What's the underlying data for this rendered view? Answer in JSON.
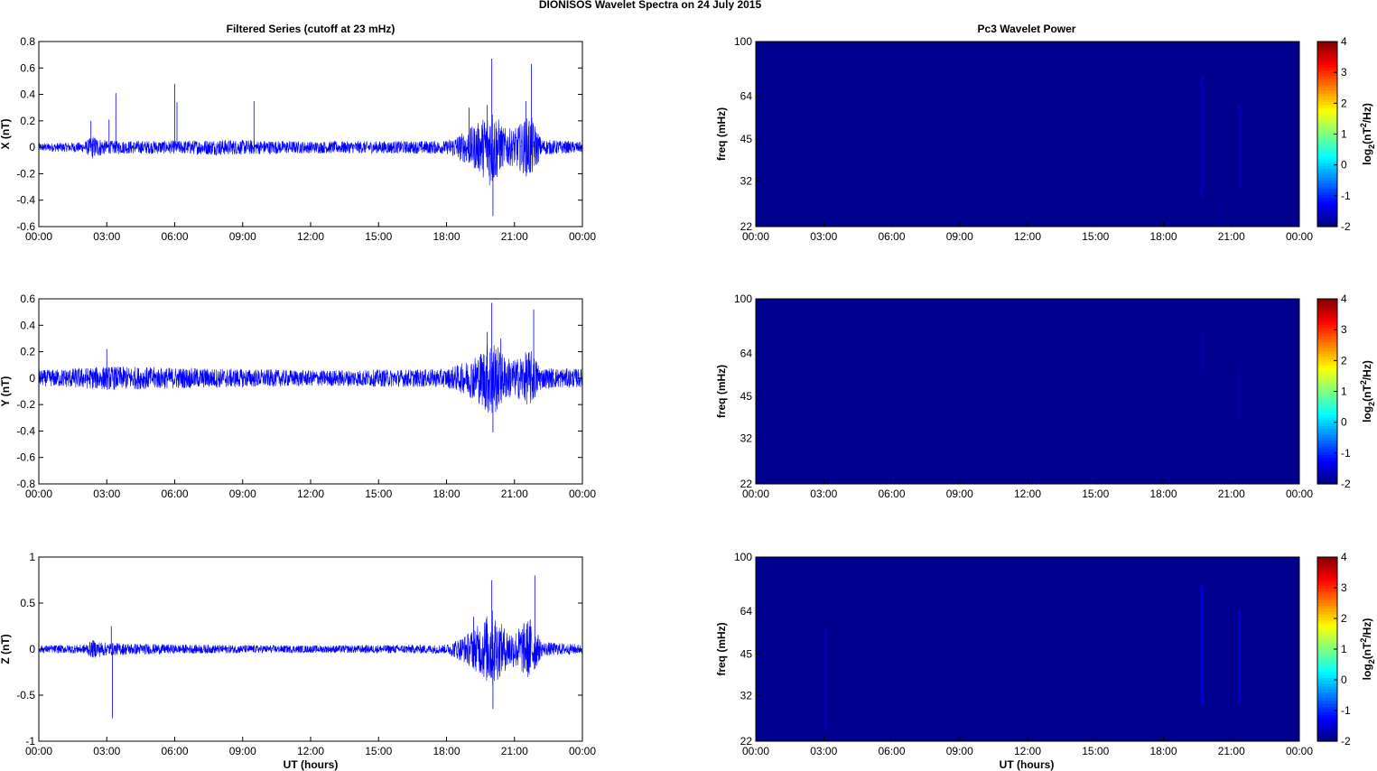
{
  "figure": {
    "title": "DIONISOS Wavelet Spectra on 24 July      2015",
    "left_title": "Filtered Series (cutoff at 23 mHz)",
    "right_title": "Pc3 Wavelet Power",
    "xlabel": "UT (hours)"
  },
  "x_ticks": [
    "00:00",
    "03:00",
    "06:00",
    "09:00",
    "12:00",
    "15:00",
    "18:00",
    "21:00",
    "00:00"
  ],
  "colors": {
    "series": "#0000ff",
    "spectrogram_bg": "#00008f",
    "axis": "#000000"
  },
  "chart_data": [
    {
      "type": "line",
      "panel": "X",
      "ylabel": "X (nT)",
      "xlim_hours": [
        0,
        24
      ],
      "ylim": [
        -0.6,
        0.8
      ],
      "yticks": [
        -0.6,
        -0.4,
        -0.2,
        0,
        0.2,
        0.4,
        0.6,
        0.8
      ],
      "ytick_labels": [
        "-0.6",
        "-0.4",
        "-0.2",
        "0",
        "0.2",
        "0.4",
        "0.6",
        "0.8"
      ],
      "series": [
        {
          "noise_envelope": [
            [
              0,
              0.03
            ],
            [
              2,
              0.04
            ],
            [
              2.4,
              0.09
            ],
            [
              3,
              0.05
            ],
            [
              6,
              0.05
            ],
            [
              8,
              0.06
            ],
            [
              12,
              0.045
            ],
            [
              18,
              0.05
            ],
            [
              18.8,
              0.12
            ],
            [
              19.5,
              0.2
            ],
            [
              20,
              0.32
            ],
            [
              20.5,
              0.15
            ],
            [
              21,
              0.14
            ],
            [
              21.7,
              0.25
            ],
            [
              22.2,
              0.06
            ],
            [
              24,
              0.04
            ]
          ],
          "spikes": [
            [
              2.3,
              0.2
            ],
            [
              3.1,
              0.21
            ],
            [
              3.4,
              0.41
            ],
            [
              6.0,
              0.48
            ],
            [
              6.1,
              0.34
            ],
            [
              9.5,
              0.35
            ],
            [
              19.0,
              0.3
            ],
            [
              19.8,
              0.32
            ],
            [
              20.0,
              0.67
            ],
            [
              20.05,
              -0.52
            ],
            [
              21.5,
              0.35
            ],
            [
              21.75,
              0.63
            ]
          ]
        }
      ]
    },
    {
      "type": "line",
      "panel": "Y",
      "ylabel": "Y (nT)",
      "xlim_hours": [
        0,
        24
      ],
      "ylim": [
        -0.8,
        0.6
      ],
      "yticks": [
        -0.8,
        -0.6,
        -0.4,
        -0.2,
        0,
        0.2,
        0.4,
        0.6
      ],
      "ytick_labels": [
        "-0.8",
        "-0.6",
        "-0.4",
        "-0.2",
        "0",
        "0.2",
        "0.4",
        "0.6"
      ],
      "series": [
        {
          "noise_envelope": [
            [
              0,
              0.06
            ],
            [
              3,
              0.09
            ],
            [
              6,
              0.08
            ],
            [
              9,
              0.07
            ],
            [
              12,
              0.06
            ],
            [
              18,
              0.07
            ],
            [
              18.8,
              0.12
            ],
            [
              19.5,
              0.2
            ],
            [
              20,
              0.32
            ],
            [
              20.5,
              0.18
            ],
            [
              21,
              0.14
            ],
            [
              21.7,
              0.22
            ],
            [
              22.2,
              0.08
            ],
            [
              24,
              0.07
            ]
          ],
          "spikes": [
            [
              3.0,
              0.22
            ],
            [
              19.8,
              0.35
            ],
            [
              20.0,
              0.57
            ],
            [
              20.05,
              -0.41
            ],
            [
              20.4,
              0.3
            ],
            [
              21.85,
              0.52
            ]
          ]
        }
      ]
    },
    {
      "type": "line",
      "panel": "Z",
      "ylabel": "Z (nT)",
      "xlim_hours": [
        0,
        24
      ],
      "ylim": [
        -1,
        1
      ],
      "yticks": [
        -1,
        -0.5,
        0,
        0.5,
        1
      ],
      "ytick_labels": [
        "-1",
        "-0.5",
        "0",
        "0.5",
        "1"
      ],
      "series": [
        {
          "noise_envelope": [
            [
              0,
              0.04
            ],
            [
              2,
              0.05
            ],
            [
              2.4,
              0.1
            ],
            [
              3,
              0.07
            ],
            [
              6,
              0.05
            ],
            [
              12,
              0.04
            ],
            [
              18,
              0.05
            ],
            [
              18.8,
              0.15
            ],
            [
              19.5,
              0.28
            ],
            [
              20,
              0.45
            ],
            [
              20.5,
              0.25
            ],
            [
              21,
              0.2
            ],
            [
              21.7,
              0.35
            ],
            [
              22.2,
              0.08
            ],
            [
              24,
              0.05
            ]
          ],
          "spikes": [
            [
              3.2,
              0.25
            ],
            [
              3.25,
              -0.75
            ],
            [
              20.0,
              0.75
            ],
            [
              20.05,
              -0.65
            ],
            [
              21.9,
              0.8
            ],
            [
              19.2,
              0.35
            ]
          ]
        }
      ]
    },
    {
      "type": "heatmap",
      "panel": "X",
      "ylabel": "freq (mHz)",
      "ylog": true,
      "ylim": [
        22,
        100
      ],
      "yticks": [
        22,
        32,
        45,
        64,
        100
      ],
      "ytick_labels": [
        "22",
        "32",
        "45",
        "64",
        "100"
      ],
      "colorbar": {
        "label": "log2(nT^2/Hz)",
        "range": [
          -2,
          4
        ],
        "ticks": [
          "-2",
          "-1",
          "0",
          "1",
          "2",
          "3",
          "4"
        ]
      },
      "background_value": -2,
      "features": [
        {
          "x_hours": 19.7,
          "f_range": [
            28,
            75
          ],
          "value": -1.5
        },
        {
          "x_hours": 21.35,
          "f_range": [
            30,
            60
          ],
          "value": -1.6
        },
        {
          "x_hours": 20.5,
          "f_range": [
            22,
            28
          ],
          "value": -1.8
        }
      ]
    },
    {
      "type": "heatmap",
      "panel": "Y",
      "ylabel": "freq (mHz)",
      "ylog": true,
      "ylim": [
        22,
        100
      ],
      "yticks": [
        22,
        32,
        45,
        64,
        100
      ],
      "ytick_labels": [
        "22",
        "32",
        "45",
        "64",
        "100"
      ],
      "colorbar": {
        "label": "log2(nT^2/Hz)",
        "range": [
          -2,
          4
        ],
        "ticks": [
          "-2",
          "-1",
          "0",
          "1",
          "2",
          "3",
          "4"
        ]
      },
      "background_value": -2,
      "features": [
        {
          "x_hours": 19.7,
          "f_range": [
            55,
            75
          ],
          "value": -1.7
        },
        {
          "x_hours": 21.35,
          "f_range": [
            38,
            58
          ],
          "value": -1.7
        }
      ]
    },
    {
      "type": "heatmap",
      "panel": "Z",
      "ylabel": "freq (mHz)",
      "ylog": true,
      "ylim": [
        22,
        100
      ],
      "yticks": [
        22,
        32,
        45,
        64,
        100
      ],
      "ytick_labels": [
        "22",
        "32",
        "45",
        "64",
        "100"
      ],
      "colorbar": {
        "label": "log2(nT^2/Hz)",
        "range": [
          -2,
          4
        ],
        "ticks": [
          "-2",
          "-1",
          "0",
          "1",
          "2",
          "3",
          "4"
        ]
      },
      "background_value": -2,
      "features": [
        {
          "x_hours": 3.1,
          "f_range": [
            24,
            55
          ],
          "value": -1.6
        },
        {
          "x_hours": 19.7,
          "f_range": [
            30,
            80
          ],
          "value": -1.3
        },
        {
          "x_hours": 21.35,
          "f_range": [
            30,
            65
          ],
          "value": -1.4
        }
      ]
    }
  ]
}
